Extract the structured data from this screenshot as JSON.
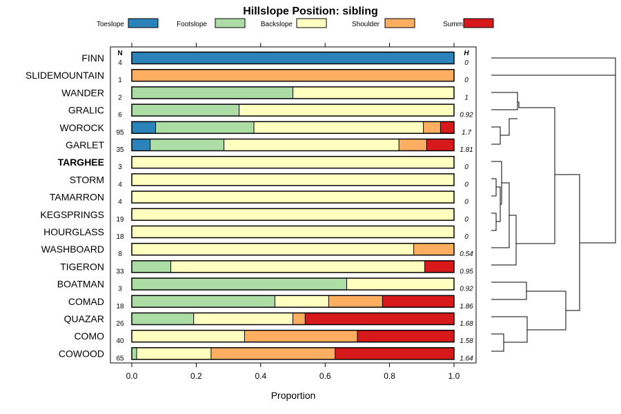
{
  "chart_data": {
    "type": "bar",
    "orientation": "horizontal",
    "stacked": true,
    "title": "Hillslope Position: sibling",
    "xlabel": "Proportion",
    "xlim": [
      0,
      1
    ],
    "xticks": [
      "0.0",
      "0.2",
      "0.4",
      "0.6",
      "0.8",
      "1.0"
    ],
    "n_header": "N",
    "h_header": "H",
    "legend": [
      {
        "name": "Toeslope",
        "color": "#2b83ba"
      },
      {
        "name": "Footslope",
        "color": "#abdda4"
      },
      {
        "name": "Backslope",
        "color": "#ffffbf"
      },
      {
        "name": "Shoulder",
        "color": "#fdae61"
      },
      {
        "name": "Summit",
        "color": "#d7191c"
      }
    ],
    "rows": [
      {
        "name": "FINN",
        "n": "4",
        "h": "0",
        "values": [
          1.0,
          0,
          0,
          0,
          0
        ]
      },
      {
        "name": "SLIDEMOUNTAIN",
        "n": "1",
        "h": "0",
        "values": [
          0,
          0,
          0,
          1.0,
          0
        ]
      },
      {
        "name": "WANDER",
        "n": "2",
        "h": "1",
        "values": [
          0,
          0.5,
          0.5,
          0,
          0
        ]
      },
      {
        "name": "GRALIC",
        "n": "6",
        "h": "0.92",
        "values": [
          0,
          0.333,
          0.667,
          0,
          0
        ]
      },
      {
        "name": "WOROCK",
        "n": "95",
        "h": "1.7",
        "values": [
          0.074,
          0.305,
          0.526,
          0.053,
          0.042
        ]
      },
      {
        "name": "GARLET",
        "n": "35",
        "h": "1.81",
        "values": [
          0.057,
          0.229,
          0.543,
          0.086,
          0.085
        ]
      },
      {
        "name": "TARGHEE",
        "n": "3",
        "h": "0",
        "values": [
          0,
          0,
          1.0,
          0,
          0
        ],
        "bold": true
      },
      {
        "name": "STORM",
        "n": "4",
        "h": "0",
        "values": [
          0,
          0,
          1.0,
          0,
          0
        ]
      },
      {
        "name": "TAMARRON",
        "n": "4",
        "h": "0",
        "values": [
          0,
          0,
          1.0,
          0,
          0
        ]
      },
      {
        "name": "KEGSPRINGS",
        "n": "19",
        "h": "0",
        "values": [
          0,
          0,
          1.0,
          0,
          0
        ]
      },
      {
        "name": "HOURGLASS",
        "n": "18",
        "h": "0",
        "values": [
          0,
          0,
          1.0,
          0,
          0
        ]
      },
      {
        "name": "WASHBOARD",
        "n": "8",
        "h": "0.54",
        "values": [
          0,
          0,
          0.875,
          0.125,
          0
        ]
      },
      {
        "name": "TIGERON",
        "n": "33",
        "h": "0.95",
        "values": [
          0,
          0.121,
          0.788,
          0,
          0.091
        ]
      },
      {
        "name": "BOATMAN",
        "n": "3",
        "h": "0.92",
        "values": [
          0,
          0.667,
          0.333,
          0,
          0
        ]
      },
      {
        "name": "COMAD",
        "n": "18",
        "h": "1.86",
        "values": [
          0,
          0.444,
          0.167,
          0.167,
          0.222
        ]
      },
      {
        "name": "QUAZAR",
        "n": "26",
        "h": "1.68",
        "values": [
          0,
          0.192,
          0.308,
          0.038,
          0.462
        ]
      },
      {
        "name": "COMO",
        "n": "40",
        "h": "1.58",
        "values": [
          0,
          0,
          0.35,
          0.35,
          0.3
        ]
      },
      {
        "name": "COWOOD",
        "n": "65",
        "h": "1.64",
        "values": [
          0,
          0.015,
          0.231,
          0.385,
          0.369
        ]
      }
    ]
  }
}
